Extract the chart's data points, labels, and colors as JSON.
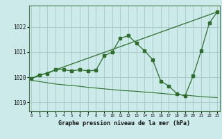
{
  "title": "Graphe pression niveau de la mer (hPa)",
  "bg_color": "#cceaea",
  "grid_color": "#aacccc",
  "line_color": "#2d6e2d",
  "x_ticks": [
    0,
    1,
    2,
    3,
    4,
    5,
    6,
    7,
    8,
    9,
    10,
    11,
    12,
    13,
    14,
    15,
    16,
    17,
    18,
    19,
    20,
    21,
    22,
    23
  ],
  "y_ticks": [
    1019,
    1020,
    1021,
    1022
  ],
  "ylim": [
    1018.65,
    1022.85
  ],
  "xlim": [
    -0.3,
    23.3
  ],
  "line1_x": [
    0,
    1,
    2,
    3,
    4,
    5,
    6,
    7,
    8,
    9,
    10,
    11,
    12,
    13,
    14,
    15,
    16,
    17,
    18,
    19,
    20,
    21,
    22,
    23
  ],
  "line1_y": [
    1019.95,
    1020.1,
    1020.15,
    1020.3,
    1020.3,
    1020.25,
    1020.3,
    1020.25,
    1020.28,
    1020.85,
    1021.0,
    1021.55,
    1021.65,
    1021.35,
    1021.05,
    1020.7,
    1019.85,
    1019.65,
    1019.35,
    1019.25,
    1020.05,
    1021.05,
    1022.15,
    1022.6
  ],
  "line2_x": [
    0,
    1,
    2,
    3,
    4,
    5,
    6,
    7,
    8,
    9,
    10,
    11,
    12,
    13,
    14,
    15,
    16,
    17,
    18,
    19,
    20,
    21,
    22,
    23
  ],
  "line2_y": [
    1019.88,
    1019.83,
    1019.78,
    1019.73,
    1019.7,
    1019.67,
    1019.64,
    1019.6,
    1019.57,
    1019.54,
    1019.51,
    1019.48,
    1019.46,
    1019.44,
    1019.41,
    1019.39,
    1019.36,
    1019.33,
    1019.31,
    1019.29,
    1019.26,
    1019.23,
    1019.21,
    1019.19
  ],
  "line3_x": [
    0,
    23
  ],
  "line3_y": [
    1019.95,
    1022.6
  ]
}
